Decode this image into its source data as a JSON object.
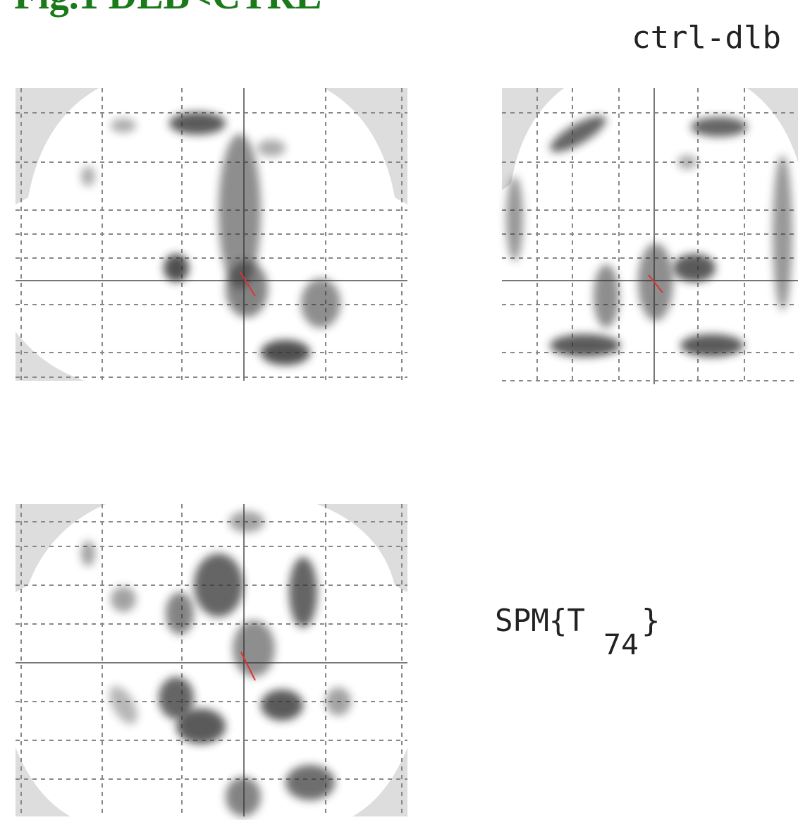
{
  "header": {
    "title": "Fig.1 DLB<CTRL"
  },
  "contrast_label": "ctrl-dlb",
  "statistic": {
    "base": "SPM{T",
    "subscript": "74",
    "close": "}"
  }
}
